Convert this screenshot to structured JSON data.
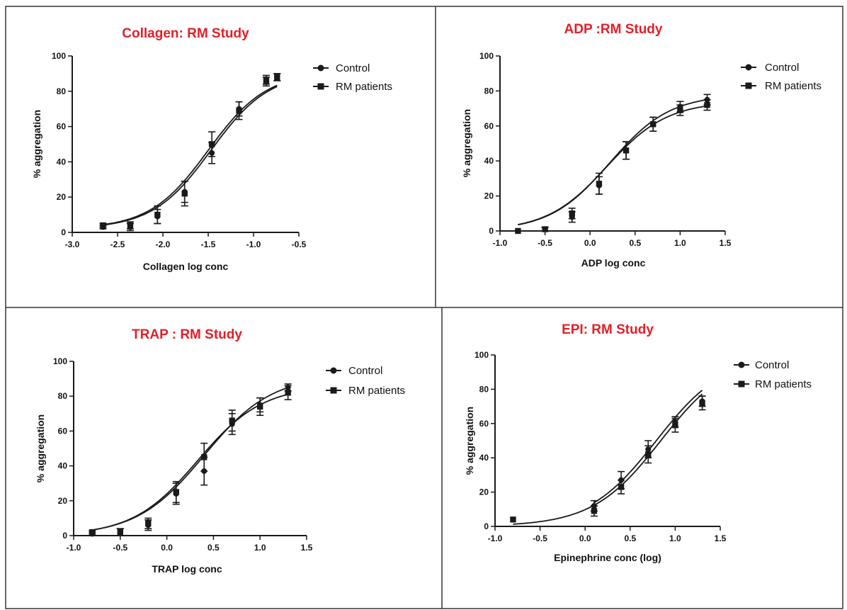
{
  "figure": {
    "title_color": "#e0202a"
  },
  "chart_data": [
    {
      "type": "line",
      "title": "Collagen: RM Study",
      "xlabel": "Collagen log conc",
      "ylabel": "% aggregation",
      "xlim": [
        -3.0,
        -0.5
      ],
      "ylim": [
        0,
        100
      ],
      "xticks": [
        "-3.0",
        "-2.5",
        "-2.0",
        "-1.5",
        "-1.0",
        "-0.5"
      ],
      "yticks": [
        "0",
        "20",
        "40",
        "60",
        "80",
        "100"
      ],
      "legend_position": "top-right",
      "series": [
        {
          "name": "Control",
          "marker": "circle",
          "x": [
            -2.66,
            -2.36,
            -2.06,
            -1.76,
            -1.46,
            -1.16,
            -0.86,
            -0.74
          ],
          "y": [
            3,
            3,
            9,
            23,
            45,
            70,
            86,
            88
          ],
          "err": [
            1,
            2,
            4,
            6,
            6,
            4,
            2,
            2
          ],
          "fit": {
            "bottom": 2,
            "top": 91,
            "logec50": -1.47,
            "hill": 1.35
          }
        },
        {
          "name": "RM patients",
          "marker": "square",
          "x": [
            -2.66,
            -2.36,
            -2.06,
            -1.76,
            -1.46,
            -1.16,
            -0.86,
            -0.74
          ],
          "y": [
            4,
            4,
            10,
            22,
            50,
            69,
            86,
            88
          ],
          "err": [
            1,
            2,
            5,
            7,
            7,
            5,
            3,
            2
          ],
          "fit": {
            "bottom": 2,
            "top": 91,
            "logec50": -1.5,
            "hill": 1.35
          }
        }
      ]
    },
    {
      "type": "line",
      "title": "ADP :RM Study",
      "xlabel": "ADP log conc",
      "ylabel": "% aggregation",
      "xlim": [
        -1.0,
        1.5
      ],
      "ylim": [
        0,
        100
      ],
      "xticks": [
        "-1.0",
        "-0.5",
        "0.0",
        "0.5",
        "1.0",
        "1.5"
      ],
      "yticks": [
        "0",
        "20",
        "40",
        "60",
        "80",
        "100"
      ],
      "legend_position": "top-right",
      "series": [
        {
          "name": "Control",
          "marker": "circle",
          "x": [
            -0.8,
            -0.5,
            -0.2,
            0.1,
            0.4,
            0.7,
            1.0,
            1.3
          ],
          "y": [
            0,
            1,
            8,
            26,
            46,
            61,
            71,
            75
          ],
          "err": [
            0,
            1,
            3,
            5,
            5,
            4,
            3,
            3
          ],
          "fit": {
            "bottom": 0,
            "top": 78,
            "logec50": 0.22,
            "hill": 1.3
          }
        },
        {
          "name": "RM patients",
          "marker": "square",
          "x": [
            -0.8,
            -0.5,
            -0.2,
            0.1,
            0.4,
            0.7,
            1.0,
            1.3
          ],
          "y": [
            0,
            1,
            10,
            27,
            46,
            61,
            69,
            72
          ],
          "err": [
            0,
            1,
            3,
            6,
            5,
            4,
            3,
            3
          ],
          "fit": {
            "bottom": 0,
            "top": 74,
            "logec50": 0.19,
            "hill": 1.3
          }
        }
      ]
    },
    {
      "type": "line",
      "title": "TRAP : RM Study",
      "xlabel": "TRAP log conc",
      "ylabel": "% aggregation",
      "xlim": [
        -1.0,
        1.5
      ],
      "ylim": [
        0,
        100
      ],
      "xticks": [
        "-1.0",
        "-0.5",
        "0.0",
        "0.5",
        "1.0",
        "1.5"
      ],
      "yticks": [
        "0",
        "20",
        "40",
        "60",
        "80",
        "100"
      ],
      "legend_position": "top-right",
      "series": [
        {
          "name": "Control",
          "marker": "circle",
          "x": [
            -0.8,
            -0.5,
            -0.2,
            0.1,
            0.4,
            0.7,
            1.0,
            1.3
          ],
          "y": [
            1,
            2,
            6,
            24,
            37,
            64,
            75,
            85
          ],
          "err": [
            1,
            2,
            3,
            6,
            8,
            6,
            4,
            2
          ],
          "fit": {
            "bottom": 0,
            "top": 92,
            "logec50": 0.4,
            "hill": 1.2
          }
        },
        {
          "name": "RM patients",
          "marker": "square",
          "x": [
            -0.8,
            -0.5,
            -0.2,
            0.1,
            0.4,
            0.7,
            1.0,
            1.3
          ],
          "y": [
            2,
            2,
            7,
            25,
            45,
            66,
            74,
            82
          ],
          "err": [
            1,
            2,
            3,
            6,
            8,
            6,
            5,
            4
          ],
          "fit": {
            "bottom": 0,
            "top": 86,
            "logec50": 0.33,
            "hill": 1.25
          }
        }
      ]
    },
    {
      "type": "line",
      "title": "EPI:  RM Study",
      "xlabel": "Epinephrine conc (log)",
      "ylabel": "% aggregation",
      "xlim": [
        -1.0,
        1.5
      ],
      "ylim": [
        0,
        100
      ],
      "xticks": [
        "-1.0",
        "-0.5",
        "0.0",
        "0.5",
        "1.0",
        "1.5"
      ],
      "yticks": [
        "0",
        "20",
        "40",
        "60",
        "80",
        "100"
      ],
      "legend_position": "top-right",
      "series": [
        {
          "name": "Control",
          "marker": "circle",
          "x": [
            0.1,
            0.4,
            0.7,
            1.0,
            1.3
          ],
          "y": [
            12,
            27,
            45,
            61,
            73
          ],
          "err": [
            3,
            5,
            5,
            3,
            3
          ],
          "fit": {
            "bottom": 0,
            "top": 100,
            "logec50": 0.79,
            "hill": 1.15
          }
        },
        {
          "name": "RM patients",
          "marker": "square",
          "x": [
            -0.8,
            0.1,
            0.4,
            0.7,
            1.0,
            1.3
          ],
          "y": [
            4,
            9,
            23,
            42,
            59,
            72
          ],
          "err": [
            0,
            3,
            4,
            5,
            4,
            4
          ],
          "fit": {
            "bottom": 0,
            "top": 100,
            "logec50": 0.84,
            "hill": 1.15
          }
        }
      ]
    }
  ]
}
